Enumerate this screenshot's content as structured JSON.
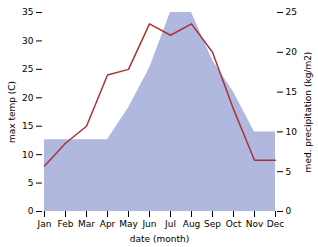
{
  "chart_data": {
    "type": "line",
    "xlabel": "date (month)",
    "ylabel": "max temp (C)",
    "y2label": "med. precipitation (kg/m2)",
    "categories": [
      "Jan",
      "Feb",
      "Mar",
      "Apr",
      "May",
      "Jun",
      "Jul",
      "Aug",
      "Sep",
      "Oct",
      "Nov",
      "Dec"
    ],
    "series": [
      {
        "type": "area",
        "axis": "y2",
        "color": "#b0b8e0",
        "values": [
          9,
          9,
          9,
          9,
          13,
          18,
          25,
          25,
          19,
          15,
          10,
          10
        ]
      },
      {
        "type": "line",
        "color": "#aa3333",
        "values": [
          8,
          12,
          15,
          24,
          25,
          33,
          31,
          33,
          28,
          18,
          9,
          9
        ]
      }
    ],
    "ylim": [
      0,
      35
    ],
    "yticks": [
      0,
      5,
      10,
      15,
      20,
      25,
      30,
      35
    ],
    "y2lim": [
      0,
      25
    ],
    "y2ticks": [
      0,
      5,
      10,
      15,
      20,
      25
    ]
  }
}
